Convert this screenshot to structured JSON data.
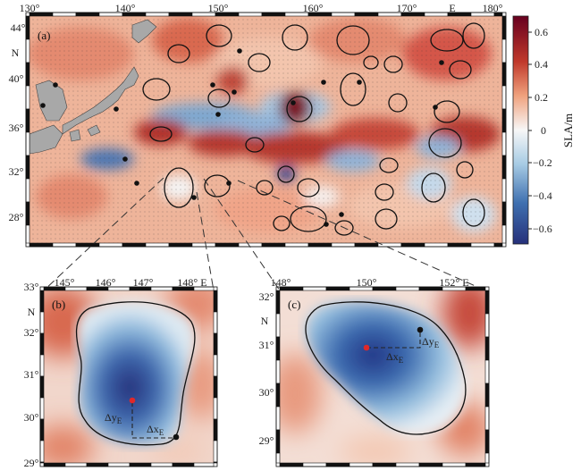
{
  "figure": {
    "panel_a": {
      "label": "(a)",
      "lon_ticks": [
        "130°",
        "140°",
        "150°",
        "160°",
        "170°",
        "E",
        "180°"
      ],
      "lat_ticks": [
        "44°",
        "N",
        "40°",
        "36°",
        "32°",
        "28°"
      ]
    },
    "panel_b": {
      "label": "(b)",
      "lon_ticks": [
        "145°",
        "146°",
        "147°",
        "148° E"
      ],
      "lat_ticks": [
        "33°",
        "N",
        "32°",
        "31°",
        "30°",
        "29°"
      ],
      "dx_label": "Δx",
      "dx_sub": "E",
      "dy_label": "Δy",
      "dy_sub": "E"
    },
    "panel_c": {
      "label": "(c)",
      "lon_ticks": [
        "148°",
        "150°",
        "152° E"
      ],
      "lat_ticks": [
        "32°",
        "N",
        "31°",
        "30°",
        "29°"
      ],
      "dx_label": "Δx",
      "dx_sub": "E",
      "dy_label": "Δy",
      "dy_sub": "E"
    },
    "colorbar": {
      "label": "SLA/m",
      "ticks": [
        "0.6",
        "0.4",
        "0.2",
        "0",
        "−0.2",
        "−0.4",
        "−0.6"
      ],
      "range": [
        -0.7,
        0.7
      ],
      "colors": {
        "high": "#67001f",
        "mid_high": "#e58367",
        "zero": "#f7f7f7",
        "mid_low": "#7fb0d3",
        "low": "#26307a"
      }
    },
    "colors": {
      "land": "#a8a8a8",
      "contour": "#111111",
      "start_point": "#e0282a",
      "end_point": "#111111"
    }
  }
}
